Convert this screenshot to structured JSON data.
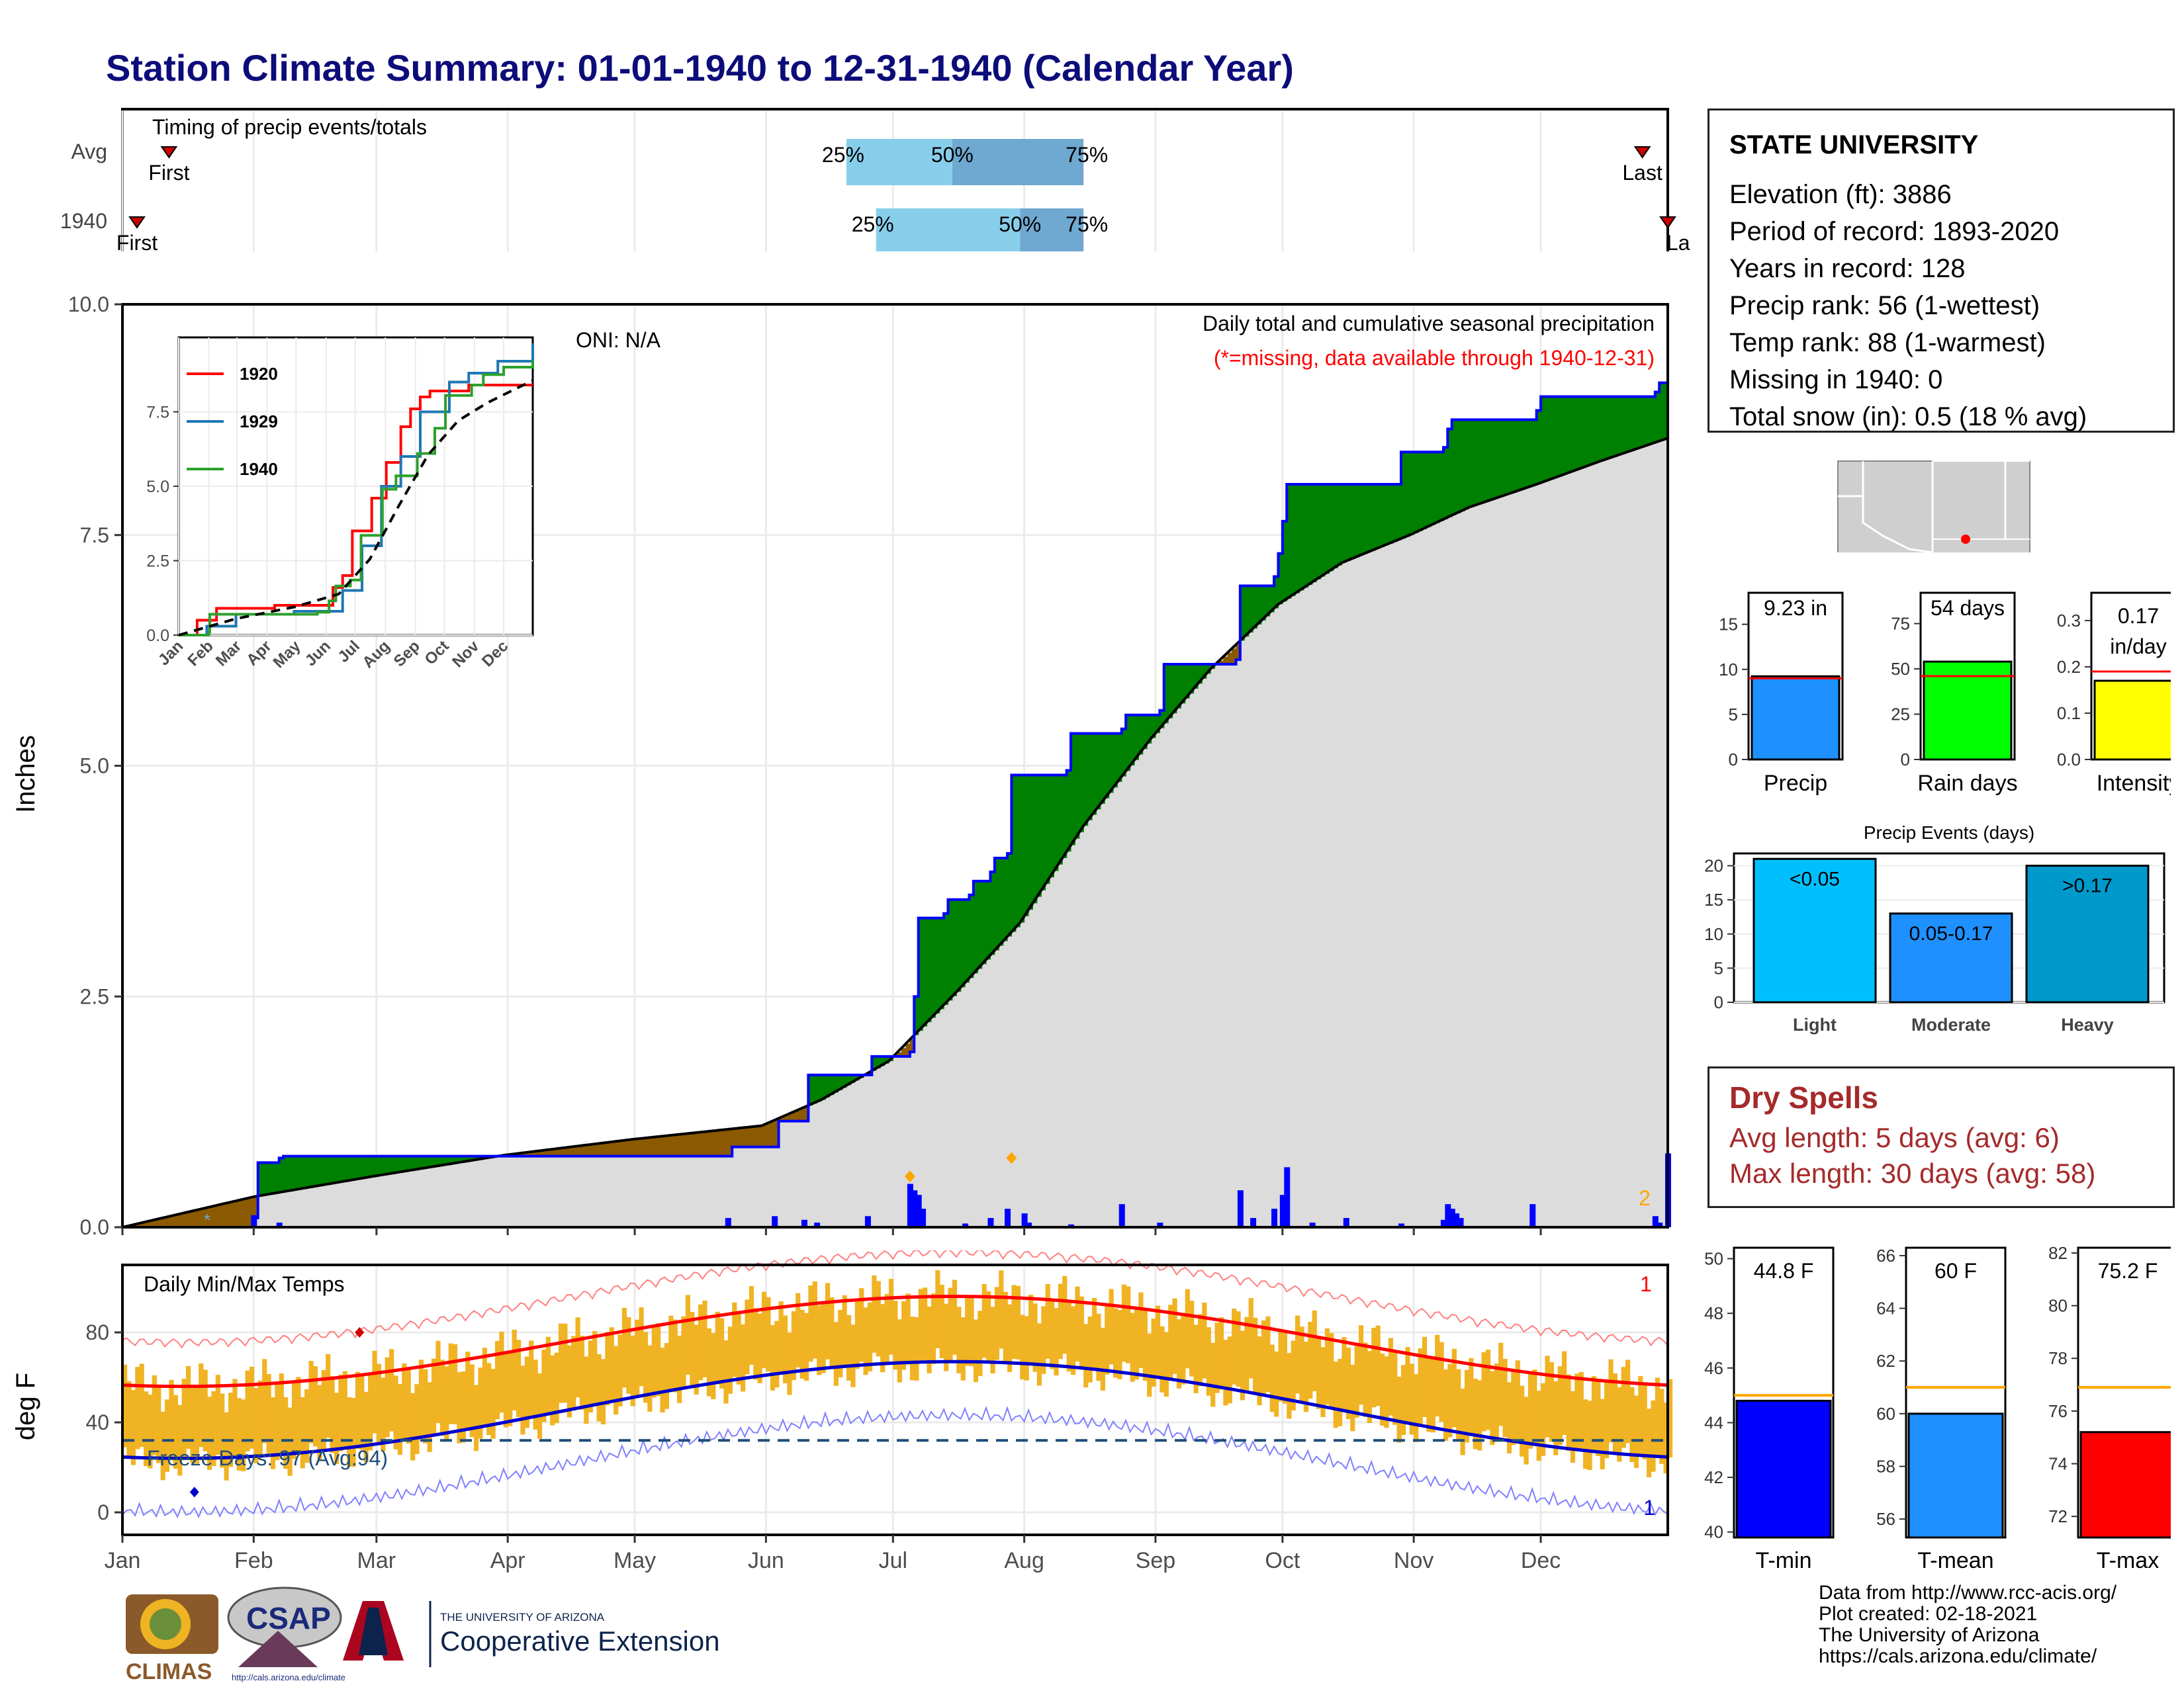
{
  "title": "Station Climate Summary: 01-01-1940 to 12-31-1940 (Calendar Year)",
  "colors": {
    "title": "#0c0c7a",
    "wet": "#008000",
    "dry": "#8B5A00",
    "avg_fill": "#dcdcdc",
    "precip_bar": "#0000ff",
    "tmax": "#ff0000",
    "tmin": "#0000cc",
    "temp_bar": "#F0B323",
    "light": "#00BFFF",
    "moderate": "#1E90FF",
    "heavy": "#0099CC",
    "iqr_light": "#87CEEB",
    "iqr_dark": "#6FA8D0",
    "dry_spell": "#a52a2a"
  },
  "timing": {
    "title": "Timing of precip events/totals",
    "rows": [
      "Avg",
      "1940"
    ],
    "first_label": "First",
    "last_label": "Last",
    "last_label_cut": "La",
    "p25": "25%",
    "p50": "50%",
    "p75": "75%",
    "avg": {
      "first_doy": 12,
      "last_doy": 360,
      "p25_doy": 172,
      "p50_doy": 197,
      "p75_doy": 228
    },
    "y1940": {
      "first_doy": 1,
      "last_doy": 366,
      "p25_doy": 179,
      "p50_doy": 213,
      "p75_doy": 228
    }
  },
  "precip": {
    "ylabel": "Inches",
    "oni": "ONI: N/A",
    "panel_title": "Daily total and cumulative seasonal precipitation",
    "missing_note": "(*=missing, data available through 1940-12-31)",
    "missing_count": "2",
    "yticks": [
      "0.0",
      "2.5",
      "5.0",
      "7.5",
      "10.0"
    ],
    "ylim": [
      0,
      10
    ],
    "events": [
      [
        32,
        0.13
      ],
      [
        38,
        0.05
      ],
      [
        144,
        0.1
      ],
      [
        155,
        0.12
      ],
      [
        162,
        0.08
      ],
      [
        165,
        0.05
      ],
      [
        177,
        0.12
      ],
      [
        187,
        0.47
      ],
      [
        188,
        0.4
      ],
      [
        189,
        0.35
      ],
      [
        190,
        0.2
      ],
      [
        200,
        0.04
      ],
      [
        206,
        0.1
      ],
      [
        210,
        0.2
      ],
      [
        214,
        0.15
      ],
      [
        215,
        0.05
      ],
      [
        225,
        0.03
      ],
      [
        237,
        0.25
      ],
      [
        246,
        0.05
      ],
      [
        265,
        0.4
      ],
      [
        268,
        0.1
      ],
      [
        273,
        0.2
      ],
      [
        275,
        0.35
      ],
      [
        276,
        0.65
      ],
      [
        282,
        0.05
      ],
      [
        290,
        0.1
      ],
      [
        303,
        0.04
      ],
      [
        313,
        0.08
      ],
      [
        314,
        0.25
      ],
      [
        315,
        0.2
      ],
      [
        316,
        0.15
      ],
      [
        317,
        0.1
      ],
      [
        334,
        0.25
      ],
      [
        363,
        0.12
      ],
      [
        364,
        0.05
      ],
      [
        366,
        0.8
      ]
    ],
    "cum_1940": [
      [
        1,
        0.0
      ],
      [
        32,
        0.1
      ],
      [
        33,
        0.7
      ],
      [
        38,
        0.75
      ],
      [
        39,
        0.77
      ],
      [
        119,
        0.77
      ],
      [
        120,
        0.77
      ],
      [
        144,
        0.77
      ],
      [
        145,
        0.87
      ],
      [
        155,
        0.87
      ],
      [
        156,
        1.15
      ],
      [
        162,
        1.15
      ],
      [
        163,
        1.65
      ],
      [
        177,
        1.65
      ],
      [
        178,
        1.85
      ],
      [
        187,
        1.9
      ],
      [
        188,
        2.5
      ],
      [
        189,
        3.35
      ],
      [
        195,
        3.4
      ],
      [
        196,
        3.55
      ],
      [
        201,
        3.6
      ],
      [
        202,
        3.75
      ],
      [
        206,
        3.85
      ],
      [
        207,
        4.0
      ],
      [
        210,
        4.05
      ],
      [
        211,
        4.9
      ],
      [
        224,
        4.95
      ],
      [
        225,
        5.35
      ],
      [
        237,
        5.4
      ],
      [
        238,
        5.55
      ],
      [
        246,
        5.6
      ],
      [
        247,
        6.1
      ],
      [
        264,
        6.15
      ],
      [
        265,
        6.95
      ],
      [
        273,
        7.05
      ],
      [
        274,
        7.3
      ],
      [
        275,
        7.65
      ],
      [
        276,
        8.05
      ],
      [
        302,
        8.05
      ],
      [
        303,
        8.4
      ],
      [
        313,
        8.45
      ],
      [
        314,
        8.65
      ],
      [
        315,
        8.75
      ],
      [
        335,
        8.85
      ],
      [
        336,
        9.0
      ],
      [
        363,
        9.05
      ],
      [
        364,
        9.15
      ],
      [
        366,
        9.23
      ]
    ],
    "avg_cum": [
      [
        1,
        0.0
      ],
      [
        32,
        0.33
      ],
      [
        60,
        0.55
      ],
      [
        91,
        0.78
      ],
      [
        121,
        0.95
      ],
      [
        152,
        1.1
      ],
      [
        166,
        1.38
      ],
      [
        182,
        1.8
      ],
      [
        198,
        2.55
      ],
      [
        213,
        3.3
      ],
      [
        228,
        4.35
      ],
      [
        244,
        5.3
      ],
      [
        258,
        6.05
      ],
      [
        274,
        6.75
      ],
      [
        289,
        7.2
      ],
      [
        305,
        7.5
      ],
      [
        319,
        7.8
      ],
      [
        335,
        8.05
      ],
      [
        350,
        8.3
      ],
      [
        366,
        8.55
      ]
    ],
    "inset": {
      "series": [
        {
          "name": "1920",
          "color": "#ff0000",
          "points": [
            [
              1,
              0.0
            ],
            [
              20,
              0.5
            ],
            [
              40,
              0.9
            ],
            [
              100,
              1.0
            ],
            [
              160,
              1.6
            ],
            [
              170,
              2.0
            ],
            [
              180,
              3.5
            ],
            [
              200,
              4.6
            ],
            [
              215,
              5.8
            ],
            [
              230,
              7.0
            ],
            [
              240,
              7.6
            ],
            [
              250,
              8.0
            ],
            [
              260,
              8.2
            ],
            [
              300,
              8.4
            ],
            [
              366,
              8.4
            ]
          ]
        },
        {
          "name": "1929",
          "color": "#1f77b4",
          "points": [
            [
              1,
              0.0
            ],
            [
              30,
              0.3
            ],
            [
              60,
              0.7
            ],
            [
              120,
              0.8
            ],
            [
              170,
              1.5
            ],
            [
              190,
              3.0
            ],
            [
              210,
              5.0
            ],
            [
              230,
              6.0
            ],
            [
              250,
              7.5
            ],
            [
              280,
              8.5
            ],
            [
              300,
              8.8
            ],
            [
              330,
              9.2
            ],
            [
              366,
              9.8
            ]
          ]
        },
        {
          "name": "1940",
          "color": "#2ca02c",
          "points": [
            [
              1,
              0.0
            ],
            [
              32,
              0.1
            ],
            [
              33,
              0.7
            ],
            [
              144,
              0.77
            ],
            [
              156,
              1.15
            ],
            [
              163,
              1.65
            ],
            [
              178,
              1.85
            ],
            [
              189,
              3.35
            ],
            [
              211,
              4.9
            ],
            [
              225,
              5.35
            ],
            [
              247,
              6.1
            ],
            [
              265,
              6.95
            ],
            [
              276,
              8.05
            ],
            [
              303,
              8.4
            ],
            [
              315,
              8.75
            ],
            [
              336,
              9.0
            ],
            [
              366,
              9.23
            ]
          ]
        }
      ],
      "avg_points": [
        [
          1,
          0.0
        ],
        [
          60,
          0.55
        ],
        [
          121,
          0.95
        ],
        [
          166,
          1.38
        ],
        [
          198,
          2.55
        ],
        [
          228,
          4.35
        ],
        [
          258,
          6.05
        ],
        [
          289,
          7.2
        ],
        [
          319,
          7.8
        ],
        [
          350,
          8.3
        ],
        [
          366,
          8.55
        ]
      ],
      "yticks": [
        "0.0",
        "2.5",
        "5.0",
        "7.5"
      ],
      "months": [
        "Jan",
        "Feb",
        "Mar",
        "Apr",
        "May",
        "Jun",
        "Jul",
        "Aug",
        "Sep",
        "Oct",
        "Nov",
        "Dec"
      ]
    }
  },
  "temps": {
    "ylabel": "deg F",
    "panel_title": "Daily Min/Max Temps",
    "freeze_label": "Freeze Days: 97 (Avg:94)",
    "top_count": "1",
    "bottom_count": "1",
    "yticks": [
      "0",
      "40",
      "80"
    ],
    "ylim": [
      -10,
      110
    ],
    "freeze_line": 32
  },
  "months": [
    "Jan",
    "Feb",
    "Mar",
    "Apr",
    "May",
    "Jun",
    "Jul",
    "Aug",
    "Sep",
    "Oct",
    "Nov",
    "Dec"
  ],
  "station": {
    "name": "STATE UNIVERSITY",
    "lines": [
      "Elevation (ft): 3886",
      "Period of record: 1893-2020",
      "Years in record: 128",
      "Precip rank: 56 (1-wettest)",
      "Temp rank: 88 (1-warmest)",
      "Missing in 1940: 0",
      "Total snow (in): 0.5 (18 % avg)"
    ]
  },
  "summary_bars": [
    {
      "label": "Precip",
      "value_text": "9.23 in",
      "value": 9.23,
      "avg": 9.0,
      "max": 18.5,
      "ticks": [
        0,
        5,
        10,
        15
      ],
      "color": "#1E90FF"
    },
    {
      "label": "Rain days",
      "value_text": "54 days",
      "value": 54,
      "avg": 46,
      "max": 92,
      "ticks": [
        0,
        25,
        50,
        75
      ],
      "color": "#00FF00"
    },
    {
      "label": "Intensity",
      "value_text": "0.17 in/day",
      "value": 0.17,
      "avg": 0.19,
      "max": 0.36,
      "ticks": [
        "0.0",
        "0.1",
        "0.2",
        "0.3"
      ],
      "color": "#FFFF00"
    }
  ],
  "precip_events": {
    "title": "Precip Events (days)",
    "yticks": [
      0,
      5,
      10,
      15,
      20
    ],
    "bars": [
      {
        "category": "Light",
        "label": "<0.05",
        "value": 21
      },
      {
        "category": "Moderate",
        "label": "0.05-0.17",
        "value": 13
      },
      {
        "category": "Heavy",
        "label": ">0.17",
        "value": 20
      }
    ]
  },
  "dry_spells": {
    "title": "Dry Spells",
    "avg_line": "Avg length: 5 days (avg: 6)",
    "max_line": "Max length: 30 days (avg: 58)"
  },
  "temp_bars": [
    {
      "label": "T-min",
      "value_text": "44.8 F",
      "value": 44.8,
      "avg": 45.0,
      "ylim": [
        39.8,
        50.4
      ],
      "ticks": [
        40,
        42,
        44,
        46,
        48,
        50
      ],
      "color": "#0000FF"
    },
    {
      "label": "T-mean",
      "value_text": "60 F",
      "value": 60.0,
      "avg": 61.0,
      "ylim": [
        55.3,
        66.3
      ],
      "ticks": [
        56,
        58,
        60,
        62,
        64,
        66
      ],
      "color": "#1E90FF"
    },
    {
      "label": "T-max",
      "value_text": "75.2 F",
      "value": 75.2,
      "avg": 76.9,
      "ylim": [
        71.2,
        82.2
      ],
      "ticks": [
        72,
        74,
        76,
        78,
        80,
        82
      ],
      "color": "#FF0000"
    }
  ],
  "credits": [
    "Data from http://www.rcc-acis.org/",
    "Plot created: 02-18-2021",
    "The University of Arizona",
    "https://cals.arizona.edu/climate/"
  ],
  "logos": {
    "climas": "CLIMAS",
    "csap": "CSAP",
    "csap_url": "http://cals.arizona.edu/climate",
    "ua_org": "THE UNIVERSITY OF ARIZONA",
    "ua_unit": "Cooperative Extension"
  }
}
